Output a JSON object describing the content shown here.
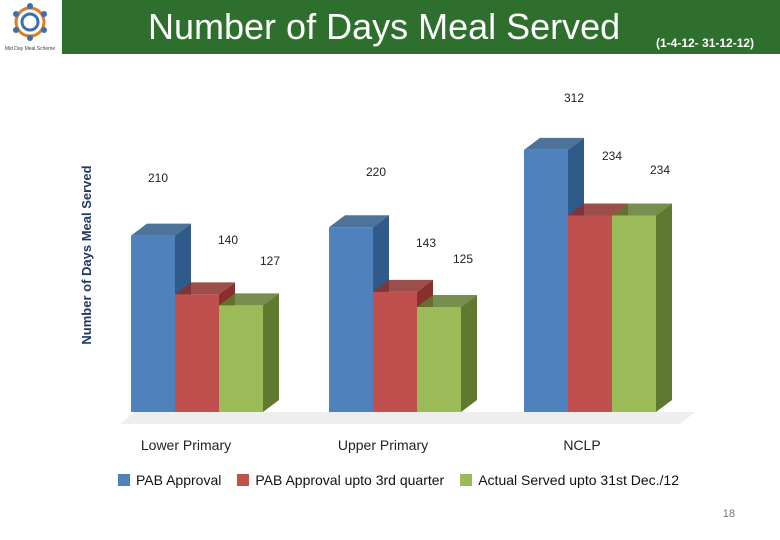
{
  "header": {
    "title": "Number of Days Meal Served",
    "date_range": "(1-4-12- 31-12-12)",
    "logo_caption": "Mid Day Meal Scheme"
  },
  "page_number": "18",
  "colors": {
    "header_bg": "#2e6f2e",
    "pab": "#4f81bd",
    "pab_q3": "#c0504d",
    "actual": "#9bbb59"
  },
  "chart_data": {
    "type": "bar",
    "title": "Number of Days Meal Served",
    "ylabel": "Number of Days Meal Served",
    "xlabel": "",
    "categories": [
      "Lower Primary",
      "Upper Primary",
      "NCLP"
    ],
    "series": [
      {
        "name": "PAB Approval",
        "values": [
          210,
          220,
          312
        ]
      },
      {
        "name": "PAB Approval upto 3rd quarter",
        "values": [
          140,
          143,
          234
        ]
      },
      {
        "name": "Actual Served upto 31st Dec./12",
        "values": [
          127,
          125,
          234
        ]
      }
    ],
    "ylim": [
      0,
      340
    ],
    "legend_position": "bottom"
  }
}
